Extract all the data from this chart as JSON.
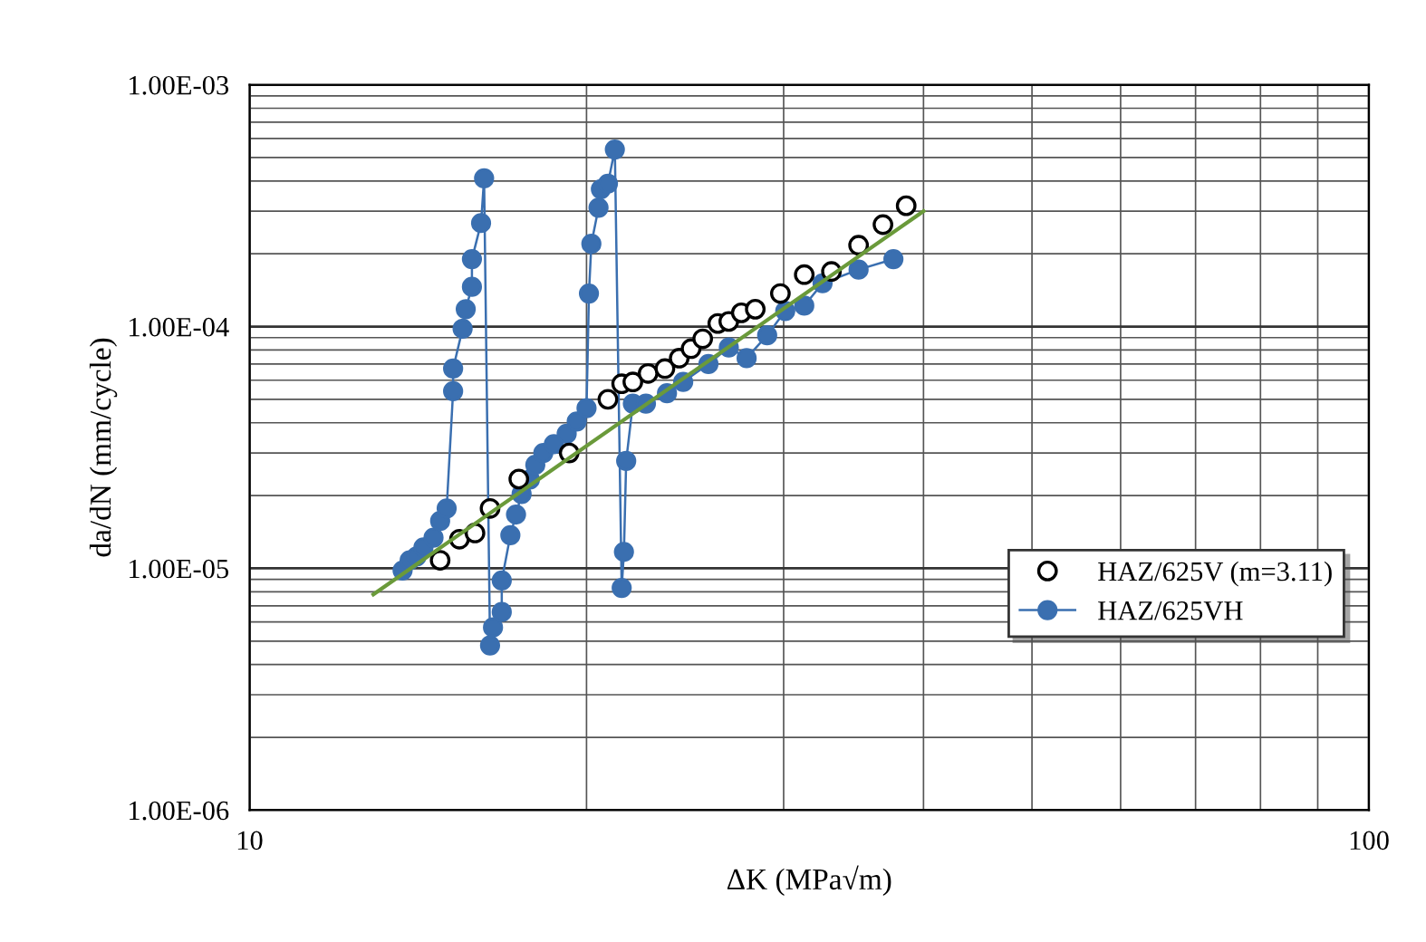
{
  "chart_data": {
    "type": "scatter",
    "xlabel": "ΔK (MPa√m)",
    "ylabel": "da/dN (mm/cycle)",
    "log": "xy",
    "xlim": [
      10,
      100
    ],
    "xticks": [
      10,
      100
    ],
    "ylim": [
      1e-06,
      0.001
    ],
    "yticks": [
      {
        "value": 1e-06,
        "label": "1.00E-06"
      },
      {
        "value": 1e-05,
        "label": "1.00E-05"
      },
      {
        "value": 0.0001,
        "label": "1.00E-04"
      },
      {
        "value": 0.001,
        "label": "1.00E-03"
      }
    ],
    "grid": true,
    "legend": "bottom right",
    "marker": "circle",
    "series": [
      {
        "name": "HAZ/625V (m=3.11)",
        "color": "#000000",
        "x": [
          14.8,
          15.4,
          15.9,
          16.4,
          17.4,
          19.3,
          20.9,
          21.5,
          22.0,
          22.7,
          23.5,
          24.2,
          24.8,
          25.4,
          26.2,
          26.8,
          27.5,
          28.3,
          29.8,
          31.3,
          33.1,
          35.0,
          36.8,
          38.6
        ],
        "values": [
          1.08e-05,
          1.32e-05,
          1.4e-05,
          1.77e-05,
          2.34e-05,
          3e-05,
          5e-05,
          5.8e-05,
          5.9e-05,
          6.4e-05,
          6.7e-05,
          7.4e-05,
          8.1e-05,
          8.9e-05,
          0.000103,
          0.000105,
          0.000114,
          0.000118,
          0.000137,
          0.000164,
          0.000169,
          0.000217,
          0.000264,
          0.000316
        ]
      },
      {
        "name": "HAZ/625VH",
        "type": "line",
        "color": "#3a6fb0",
        "x": [
          13.7,
          13.9,
          14.1,
          14.3,
          14.6,
          14.8,
          15.0,
          15.2,
          15.2,
          15.5,
          15.6,
          15.8,
          15.8,
          16.1,
          16.2,
          16.4,
          16.5,
          16.8,
          16.8,
          17.1,
          17.3,
          17.5,
          17.8,
          18.0,
          18.3,
          18.7,
          19.2,
          19.6,
          20.0,
          20.1,
          20.2,
          20.5,
          20.6,
          20.9,
          21.2,
          21.5,
          21.6,
          21.7,
          22.0,
          22.6,
          23.6,
          24.4,
          25.7,
          26.8,
          27.8,
          29.0,
          30.1,
          31.3,
          32.5,
          35.0,
          37.6
        ],
        "values": [
          9.8e-06,
          1.08e-05,
          1.12e-05,
          1.22e-05,
          1.34e-05,
          1.57e-05,
          1.77e-05,
          5.4e-05,
          6.7e-05,
          9.8e-05,
          0.000118,
          0.000146,
          0.00019,
          0.000268,
          0.00041,
          4.8e-06,
          5.7e-06,
          6.6e-06,
          8.9e-06,
          1.37e-05,
          1.67e-05,
          2.03e-05,
          2.33e-05,
          2.68e-05,
          3e-05,
          3.26e-05,
          3.6e-05,
          4.05e-05,
          4.6e-05,
          0.000137,
          0.00022,
          0.00031,
          0.00037,
          0.00039,
          0.00054,
          8.3e-06,
          1.17e-05,
          2.78e-05,
          4.8e-05,
          4.8e-05,
          5.3e-05,
          5.9e-05,
          7e-05,
          8.2e-05,
          7.4e-05,
          9.2e-05,
          0.000116,
          0.000122,
          0.000151,
          0.000172,
          0.00019
        ]
      },
      {
        "type": "line",
        "color": "#6a9a3a",
        "marker": "none",
        "x": [
          12.9,
          40
        ],
        "values": [
          7.8e-06,
          0.0003
        ]
      }
    ]
  }
}
